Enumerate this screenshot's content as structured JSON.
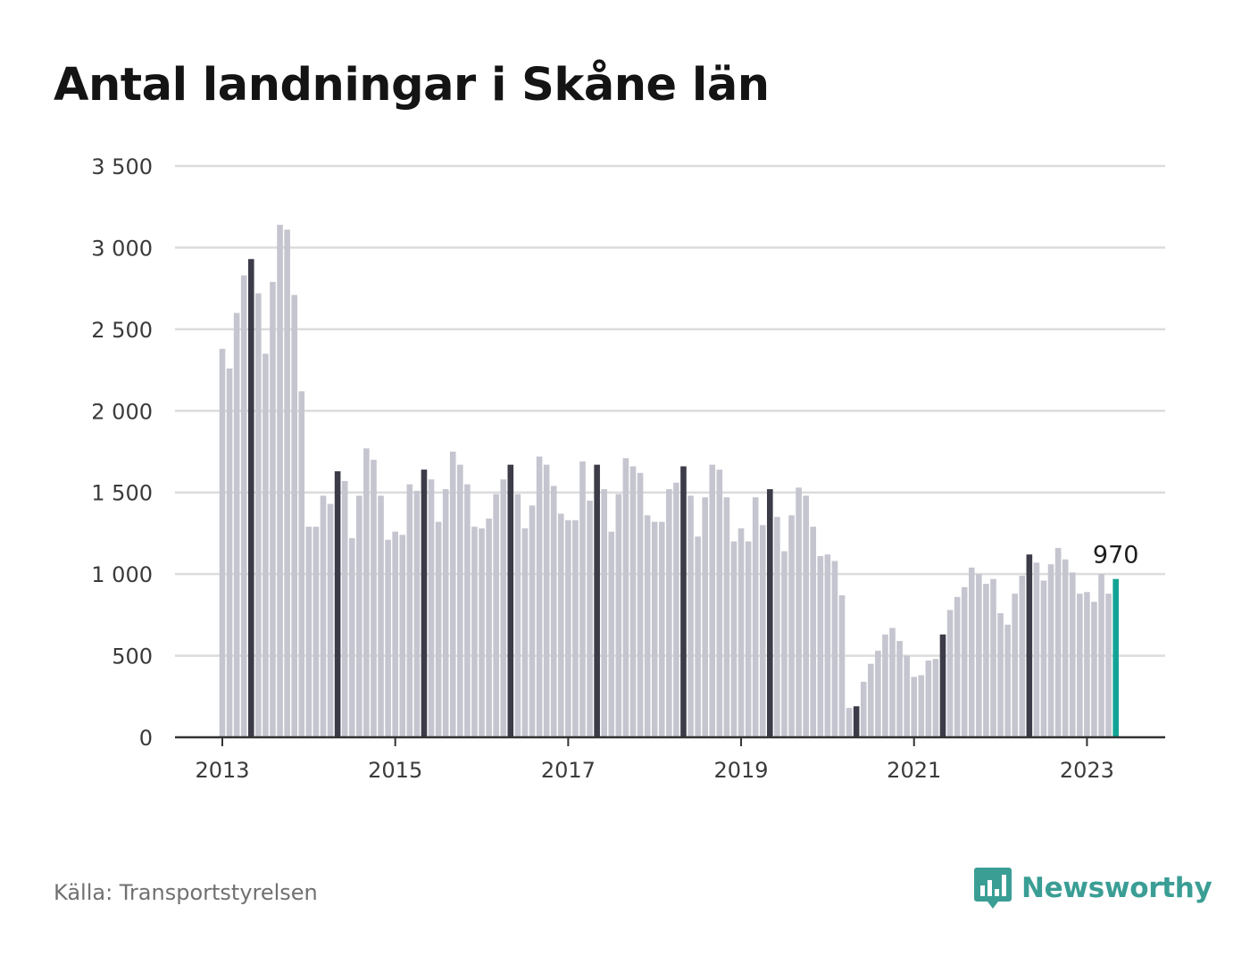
{
  "title": "Antal landningar i Skåne län",
  "source": "Källa: Transportstyrelsen",
  "brand": "Newsworthy",
  "colors": {
    "bar": "#c5c5d0",
    "highlight": "#3c3b48",
    "last": "#13a394",
    "grid": "#dcdcde",
    "axis": "#333333",
    "brand": "#3a9e95"
  },
  "chart_data": {
    "type": "bar",
    "title": "Antal landningar i Skåne län",
    "xlabel": "",
    "ylabel": "",
    "ylim": [
      0,
      3500
    ],
    "yticks": [
      0,
      500,
      1000,
      1500,
      2000,
      2500,
      3000,
      3500
    ],
    "ytick_labels": [
      "0",
      "500",
      "1 000",
      "1 500",
      "2 000",
      "2 500",
      "3 000",
      "3 500"
    ],
    "xtick_labels": [
      "2013",
      "2015",
      "2017",
      "2019",
      "2021",
      "2023"
    ],
    "start": "2013-01",
    "end": "2023-05",
    "grid": true,
    "highlight_month": 5,
    "last_label": "970",
    "values": [
      2380,
      2260,
      2600,
      2830,
      2930,
      2720,
      2350,
      2790,
      3140,
      3110,
      2710,
      2120,
      1290,
      1290,
      1480,
      1430,
      1630,
      1570,
      1220,
      1480,
      1770,
      1700,
      1480,
      1210,
      1260,
      1240,
      1550,
      1510,
      1640,
      1580,
      1320,
      1520,
      1750,
      1670,
      1550,
      1290,
      1280,
      1340,
      1490,
      1580,
      1670,
      1490,
      1280,
      1420,
      1720,
      1670,
      1540,
      1370,
      1330,
      1330,
      1690,
      1450,
      1670,
      1520,
      1260,
      1490,
      1710,
      1660,
      1620,
      1360,
      1320,
      1320,
      1520,
      1560,
      1660,
      1480,
      1230,
      1470,
      1670,
      1640,
      1470,
      1200,
      1280,
      1200,
      1470,
      1300,
      1520,
      1350,
      1140,
      1360,
      1530,
      1480,
      1290,
      1110,
      1120,
      1080,
      870,
      180,
      190,
      340,
      450,
      530,
      630,
      670,
      590,
      500,
      370,
      380,
      470,
      480,
      630,
      780,
      860,
      920,
      1040,
      1000,
      940,
      970,
      760,
      690,
      880,
      990,
      1120,
      1070,
      960,
      1060,
      1160,
      1090,
      1010,
      880,
      890,
      830,
      1000,
      880,
      970
    ]
  }
}
